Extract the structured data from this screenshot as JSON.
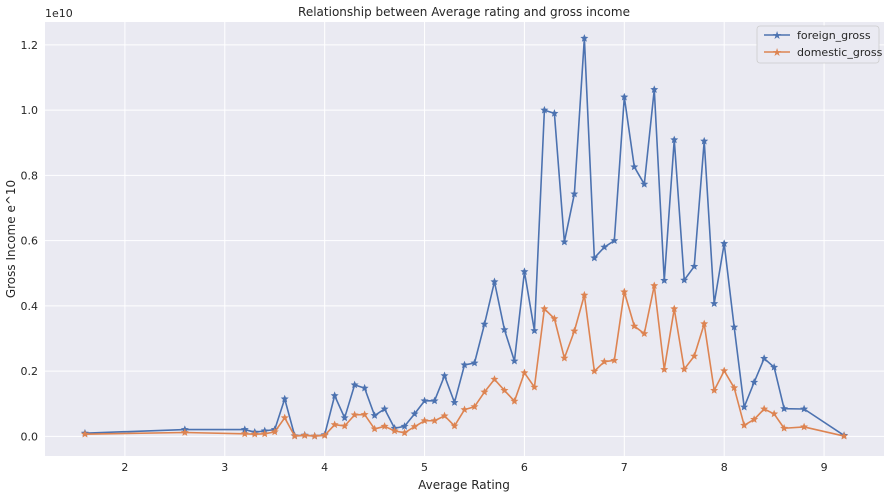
{
  "chart_data": {
    "type": "line",
    "title": "Relationship between Average rating and gross income",
    "xlabel": "Average Rating",
    "ylabel": "Gross Income e^10",
    "y_offset_text": "1e10",
    "xlim": [
      1.2,
      9.6
    ],
    "ylim": [
      -0.06,
      1.27
    ],
    "x_ticks": [
      2,
      3,
      4,
      5,
      6,
      7,
      8,
      9
    ],
    "y_ticks": [
      0.0,
      0.2,
      0.4,
      0.6,
      0.8,
      1.0,
      1.2
    ],
    "x_tick_labels": [
      "2",
      "3",
      "4",
      "5",
      "6",
      "7",
      "8",
      "9"
    ],
    "y_tick_labels": [
      "0.0",
      "0.2",
      "0.4",
      "0.6",
      "0.8",
      "1.0",
      "1.2"
    ],
    "grid": true,
    "legend_position": "top-right",
    "x": [
      1.6,
      2.6,
      3.2,
      3.3,
      3.4,
      3.5,
      3.6,
      3.7,
      3.8,
      3.9,
      4.0,
      4.1,
      4.2,
      4.3,
      4.4,
      4.5,
      4.6,
      4.7,
      4.8,
      4.9,
      5.0,
      5.1,
      5.2,
      5.3,
      5.4,
      5.5,
      5.6,
      5.7,
      5.8,
      5.9,
      6.0,
      6.1,
      6.2,
      6.3,
      6.4,
      6.5,
      6.6,
      6.7,
      6.8,
      6.9,
      7.0,
      7.1,
      7.2,
      7.3,
      7.4,
      7.5,
      7.6,
      7.7,
      7.8,
      7.9,
      8.0,
      8.1,
      8.2,
      8.3,
      8.4,
      8.5,
      8.6,
      8.8,
      9.2
    ],
    "series": [
      {
        "name": "foreign_gross",
        "color": "#4c72b0",
        "values": [
          0.01,
          0.021,
          0.021,
          0.013,
          0.017,
          0.021,
          0.115,
          0.002,
          0.004,
          0.001,
          0.005,
          0.125,
          0.057,
          0.158,
          0.148,
          0.064,
          0.084,
          0.025,
          0.031,
          0.069,
          0.109,
          0.109,
          0.186,
          0.104,
          0.219,
          0.225,
          0.344,
          0.474,
          0.327,
          0.231,
          0.505,
          0.324,
          1.0,
          0.99,
          0.596,
          0.743,
          1.22,
          0.547,
          0.58,
          0.6,
          1.04,
          0.826,
          0.773,
          1.063,
          0.478,
          0.909,
          0.479,
          0.521,
          0.905,
          0.407,
          0.591,
          0.335,
          0.09,
          0.166,
          0.239,
          0.212,
          0.085,
          0.084,
          0.003
        ]
      },
      {
        "name": "domestic_gross",
        "color": "#dd8452",
        "values": [
          0.007,
          0.012,
          0.008,
          0.007,
          0.008,
          0.014,
          0.057,
          0.001,
          0.003,
          0.001,
          0.003,
          0.036,
          0.032,
          0.066,
          0.067,
          0.023,
          0.031,
          0.017,
          0.011,
          0.03,
          0.048,
          0.048,
          0.063,
          0.032,
          0.082,
          0.091,
          0.136,
          0.175,
          0.141,
          0.108,
          0.195,
          0.151,
          0.391,
          0.361,
          0.24,
          0.323,
          0.433,
          0.2,
          0.229,
          0.233,
          0.443,
          0.338,
          0.315,
          0.462,
          0.205,
          0.391,
          0.206,
          0.246,
          0.345,
          0.141,
          0.201,
          0.149,
          0.034,
          0.052,
          0.084,
          0.069,
          0.025,
          0.029,
          0.001
        ]
      }
    ]
  }
}
